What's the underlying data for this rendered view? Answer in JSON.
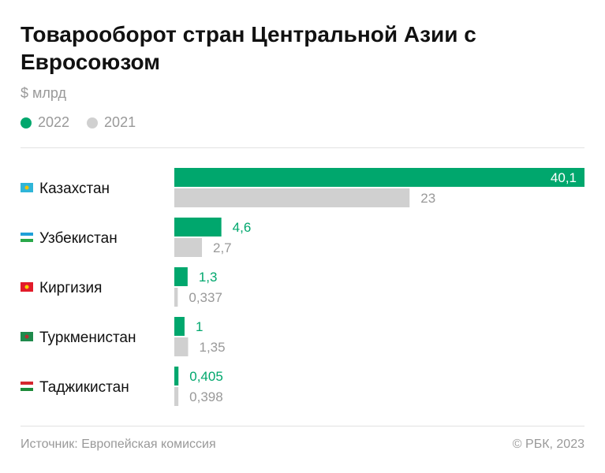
{
  "title": "Товарооборот стран Центральной Азии с Евросоюзом",
  "unit": "$ млрд",
  "source": "Источник: Европейская комиссия",
  "copyright": "© РБК, 2023",
  "colors": {
    "s2022": "#00a76d",
    "s2021": "#d0d0d0",
    "label2021": "#999999"
  },
  "chart_data": {
    "type": "bar",
    "orientation": "horizontal",
    "title": "Товарооборот стран Центральной Азии с Евросоюзом",
    "ylabel": "$ млрд",
    "categories": [
      "Казахстан",
      "Узбекистан",
      "Киргизия",
      "Туркменистан",
      "Таджикистан"
    ],
    "series": [
      {
        "name": "2022",
        "values": [
          40.1,
          4.6,
          1.3,
          1,
          0.405
        ],
        "labels": [
          "40,1",
          "4,6",
          "1,3",
          "1",
          "0,405"
        ]
      },
      {
        "name": "2021",
        "values": [
          23,
          2.7,
          0.337,
          1.35,
          0.398
        ],
        "labels": [
          "23",
          "2,7",
          "0,337",
          "1,35",
          "0,398"
        ]
      }
    ],
    "xlim": [
      0,
      40.1
    ],
    "legend": "top-left"
  }
}
